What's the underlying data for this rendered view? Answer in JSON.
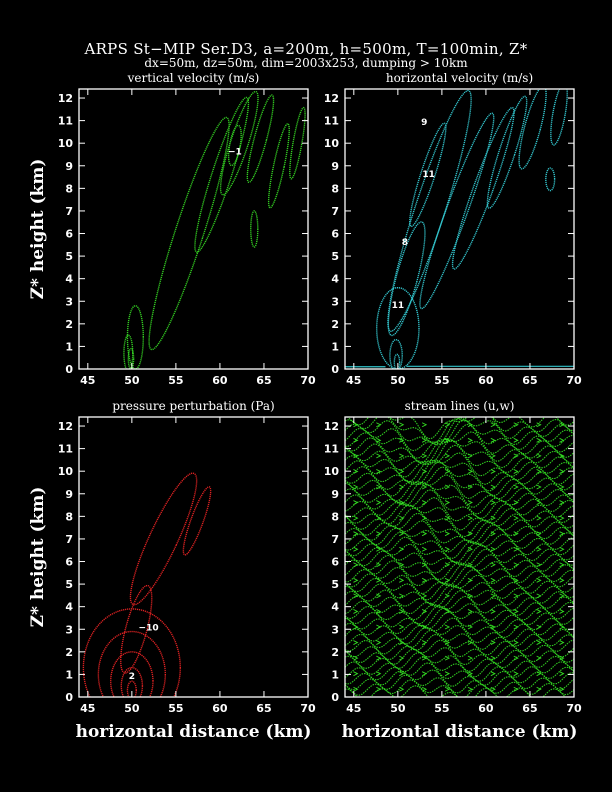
{
  "title": "ARPS St−MIP Ser.D3, a=200m, h=500m, T=100min, Z*",
  "subtitle": "dx=50m, dz=50m, dim=2003x253, dumping > 10km",
  "colors": {
    "background": "#000000",
    "vertical_velocity": "#33cc22",
    "horizontal_velocity": "#33c4cc",
    "pressure": "#dd2222",
    "streamlines": "#33dd22"
  },
  "chart_data": [
    {
      "type": "contour",
      "title": "vertical velocity (m/s)",
      "xlabel": "",
      "ylabel": "Z* height (km)",
      "xlim": [
        44,
        70
      ],
      "ylim": [
        0,
        12.4
      ],
      "xticks": [
        45,
        50,
        55,
        60,
        65,
        70
      ],
      "yticks": [
        0,
        1,
        2,
        3,
        4,
        5,
        6,
        7,
        8,
        9,
        10,
        11,
        12
      ],
      "contour_labels": [
        {
          "text": "−1",
          "x": 61.7,
          "y": 9.5
        }
      ],
      "contours": [
        {
          "cx": 56.5,
          "cy": 6.0,
          "rx": 1.6,
          "ry": 5.4,
          "rot": 18
        },
        {
          "cx": 60.2,
          "cy": 8.6,
          "rx": 1.1,
          "ry": 3.6,
          "rot": 18
        },
        {
          "cx": 62.2,
          "cy": 10.0,
          "rx": 1.0,
          "ry": 2.4,
          "rot": 18
        },
        {
          "cx": 61.7,
          "cy": 9.9,
          "rx": 0.6,
          "ry": 0.9,
          "rot": 10
        },
        {
          "cx": 64.6,
          "cy": 10.2,
          "rx": 0.7,
          "ry": 2.0,
          "rot": 15
        },
        {
          "cx": 66.7,
          "cy": 9.0,
          "rx": 0.6,
          "ry": 1.9,
          "rot": 12
        },
        {
          "cx": 68.8,
          "cy": 10.0,
          "rx": 0.5,
          "ry": 1.6,
          "rot": 10
        },
        {
          "cx": 63.9,
          "cy": 6.2,
          "rx": 0.4,
          "ry": 0.8,
          "rot": 0
        },
        {
          "cx": 50.4,
          "cy": 1.4,
          "rx": 0.9,
          "ry": 1.4,
          "rot": 0
        },
        {
          "cx": 49.6,
          "cy": 0.7,
          "rx": 0.5,
          "ry": 0.8,
          "rot": 0
        },
        {
          "cx": 49.9,
          "cy": 0.45,
          "rx": 0.3,
          "ry": 0.45,
          "rot": 0
        }
      ]
    },
    {
      "type": "contour",
      "title": "horizontal velocity (m/s)",
      "xlabel": "",
      "ylabel": "",
      "xlim": [
        44,
        70
      ],
      "ylim": [
        0,
        12.4
      ],
      "xticks": [
        45,
        50,
        55,
        60,
        65,
        70
      ],
      "yticks": [
        0,
        1,
        2,
        3,
        4,
        5,
        6,
        7,
        8,
        9,
        10,
        11,
        12
      ],
      "contour_labels": [
        {
          "text": "9",
          "x": 53.0,
          "y": 10.8
        },
        {
          "text": "11",
          "x": 53.5,
          "y": 8.5
        },
        {
          "text": "8",
          "x": 50.8,
          "y": 5.5
        },
        {
          "text": "11",
          "x": 50.0,
          "y": 2.7
        }
      ],
      "contours": [
        {
          "cx": 53.6,
          "cy": 7.0,
          "rx": 1.7,
          "ry": 5.6,
          "rot": 18
        },
        {
          "cx": 53.4,
          "cy": 8.6,
          "rx": 0.8,
          "ry": 2.4,
          "rot": 18
        },
        {
          "cx": 56.7,
          "cy": 7.0,
          "rx": 1.2,
          "ry": 4.6,
          "rot": 20
        },
        {
          "cx": 59.7,
          "cy": 8.0,
          "rx": 1.1,
          "ry": 3.8,
          "rot": 20
        },
        {
          "cx": 62.4,
          "cy": 9.6,
          "rx": 0.9,
          "ry": 2.6,
          "rot": 18
        },
        {
          "cx": 65.3,
          "cy": 10.7,
          "rx": 0.9,
          "ry": 1.9,
          "rot": 15
        },
        {
          "cx": 68.3,
          "cy": 11.3,
          "rx": 0.7,
          "ry": 1.4,
          "rot": 10
        },
        {
          "cx": 67.3,
          "cy": 8.4,
          "rx": 0.5,
          "ry": 0.5,
          "rot": 0
        },
        {
          "cx": 51.0,
          "cy": 4.0,
          "rx": 1.2,
          "ry": 2.6,
          "rot": 15
        },
        {
          "cx": 50.0,
          "cy": 1.8,
          "rx": 2.4,
          "ry": 1.8,
          "rot": 0
        },
        {
          "cx": 49.8,
          "cy": 0.6,
          "rx": 0.7,
          "ry": 0.7,
          "rot": 0
        },
        {
          "cx": 49.9,
          "cy": 0.3,
          "rx": 0.3,
          "ry": 0.35,
          "rot": 0
        }
      ]
    },
    {
      "type": "contour",
      "title": "pressure perturbation (Pa)",
      "xlabel": "horizontal distance (km)",
      "ylabel": "Z* height (km)",
      "xlim": [
        44,
        70
      ],
      "ylim": [
        0,
        12.4
      ],
      "xticks": [
        45,
        50,
        55,
        60,
        65,
        70
      ],
      "yticks": [
        0,
        1,
        2,
        3,
        4,
        5,
        6,
        7,
        8,
        9,
        10,
        11,
        12
      ],
      "contour_labels": [
        {
          "text": "−10",
          "x": 51.9,
          "y": 2.95
        },
        {
          "text": "2",
          "x": 50.0,
          "y": 0.8
        }
      ],
      "contours": [
        {
          "cx": 53.6,
          "cy": 7.0,
          "rx": 1.6,
          "ry": 3.2,
          "rot": 25
        },
        {
          "cx": 57.4,
          "cy": 7.8,
          "rx": 0.7,
          "ry": 1.6,
          "rot": 20
        },
        {
          "cx": 50.5,
          "cy": 3.0,
          "rx": 1.2,
          "ry": 2.0,
          "rot": 15
        },
        {
          "cx": 50.0,
          "cy": 1.3,
          "rx": 5.5,
          "ry": 2.6,
          "rot": 0
        },
        {
          "cx": 50.0,
          "cy": 1.0,
          "rx": 3.8,
          "ry": 1.9,
          "rot": 0
        },
        {
          "cx": 50.0,
          "cy": 0.7,
          "rx": 2.4,
          "ry": 1.3,
          "rot": 0
        },
        {
          "cx": 50.0,
          "cy": 0.5,
          "rx": 1.2,
          "ry": 0.8,
          "rot": 0
        },
        {
          "cx": 50.0,
          "cy": 0.3,
          "rx": 0.5,
          "ry": 0.4,
          "rot": 0
        }
      ]
    },
    {
      "type": "streamlines",
      "title": "stream lines (u,w)",
      "xlabel": "horizontal distance (km)",
      "ylabel": "",
      "xlim": [
        44,
        70
      ],
      "ylim": [
        0,
        12.4
      ],
      "xticks": [
        45,
        50,
        55,
        60,
        65,
        70
      ],
      "yticks": [
        0,
        1,
        2,
        3,
        4,
        5,
        6,
        7,
        8,
        9,
        10,
        11,
        12
      ]
    }
  ]
}
